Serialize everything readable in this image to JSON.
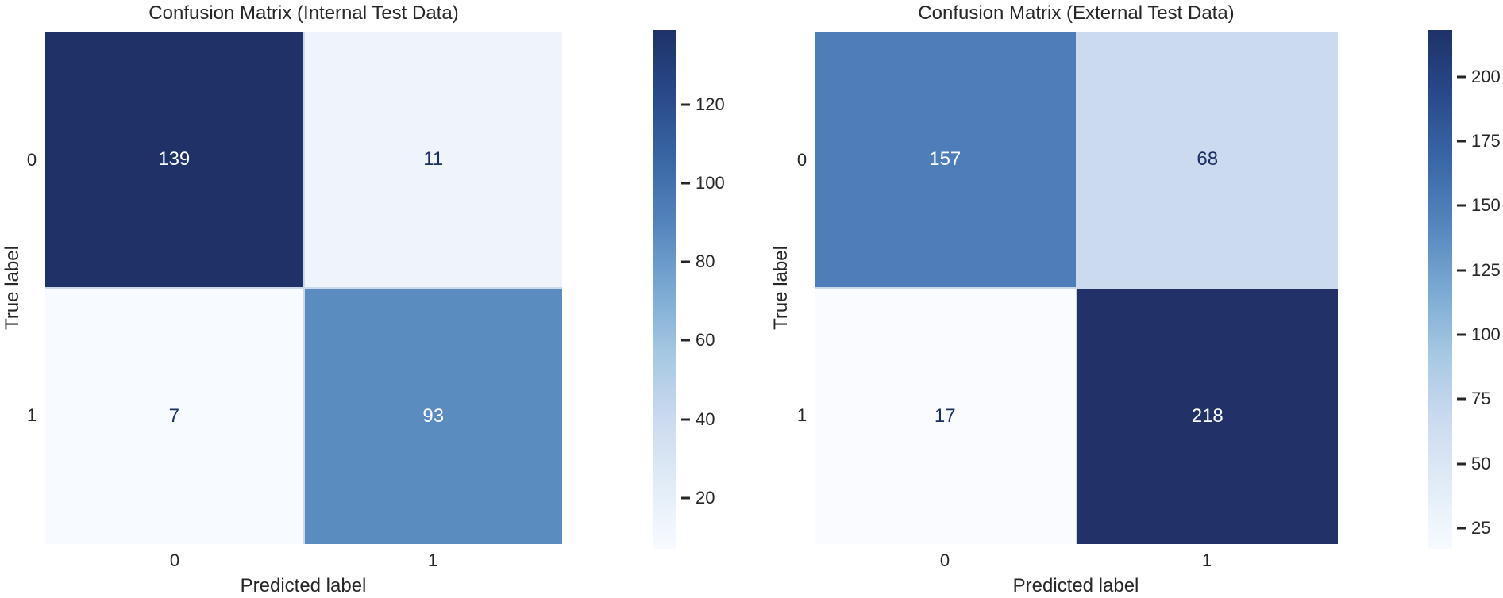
{
  "page": {
    "background_color": "#ffffff",
    "text_color": "#262626"
  },
  "style": {
    "colormap_name": "Blues",
    "colormap_stops": [
      "#f7fbff",
      "#e1ecf7",
      "#cbdaef",
      "#a6c8e2",
      "#7aa9d3",
      "#5585bd",
      "#3a67a5",
      "#29498a",
      "#1e3268"
    ],
    "annotation_dark_text": "#1b2e60",
    "annotation_light_text": "#ffffff",
    "cell_gap_color": "#ccd9eb"
  },
  "chart_data": [
    {
      "type": "heatmap",
      "title": "Confusion Matrix (Internal Test Data)",
      "xlabel": "Predicted label",
      "ylabel": "True label",
      "x_ticklabels": [
        "0",
        "1"
      ],
      "y_ticklabels": [
        "0",
        "1"
      ],
      "matrix": [
        [
          139,
          11
        ],
        [
          7,
          93
        ]
      ],
      "vmin": 7,
      "vmax": 139,
      "cells": [
        {
          "row": 0,
          "col": 0,
          "value": "139",
          "color": "#1e3268",
          "text_color": "#ffffff"
        },
        {
          "row": 0,
          "col": 1,
          "value": "11",
          "color": "#eff4fb",
          "text_color": "#1b2e60"
        },
        {
          "row": 1,
          "col": 0,
          "value": "7",
          "color": "#f7fafe",
          "text_color": "#1b2e60"
        },
        {
          "row": 1,
          "col": 1,
          "value": "93",
          "color": "#5b8cc0",
          "text_color": "#ffffff"
        }
      ],
      "colorbar": {
        "ticks": [
          20,
          40,
          60,
          80,
          100,
          120
        ],
        "orientation": "vertical",
        "position": "right"
      },
      "legend": "none",
      "grid": false
    },
    {
      "type": "heatmap",
      "title": "Confusion Matrix (External Test Data)",
      "xlabel": "Predicted label",
      "ylabel": "True label",
      "x_ticklabels": [
        "0",
        "1"
      ],
      "y_ticklabels": [
        "0",
        "1"
      ],
      "matrix": [
        [
          157,
          68
        ],
        [
          17,
          218
        ]
      ],
      "vmin": 17,
      "vmax": 218,
      "cells": [
        {
          "row": 0,
          "col": 0,
          "value": "157",
          "color": "#4e7db9",
          "text_color": "#ffffff"
        },
        {
          "row": 0,
          "col": 1,
          "value": "68",
          "color": "#cbdaef",
          "text_color": "#1b2e60"
        },
        {
          "row": 1,
          "col": 0,
          "value": "17",
          "color": "#f9fbfe",
          "text_color": "#1b2e60"
        },
        {
          "row": 1,
          "col": 1,
          "value": "218",
          "color": "#223168",
          "text_color": "#ffffff"
        }
      ],
      "colorbar": {
        "ticks": [
          25,
          50,
          75,
          100,
          125,
          150,
          175,
          200
        ],
        "orientation": "vertical",
        "position": "right"
      },
      "legend": "none",
      "grid": false
    }
  ]
}
